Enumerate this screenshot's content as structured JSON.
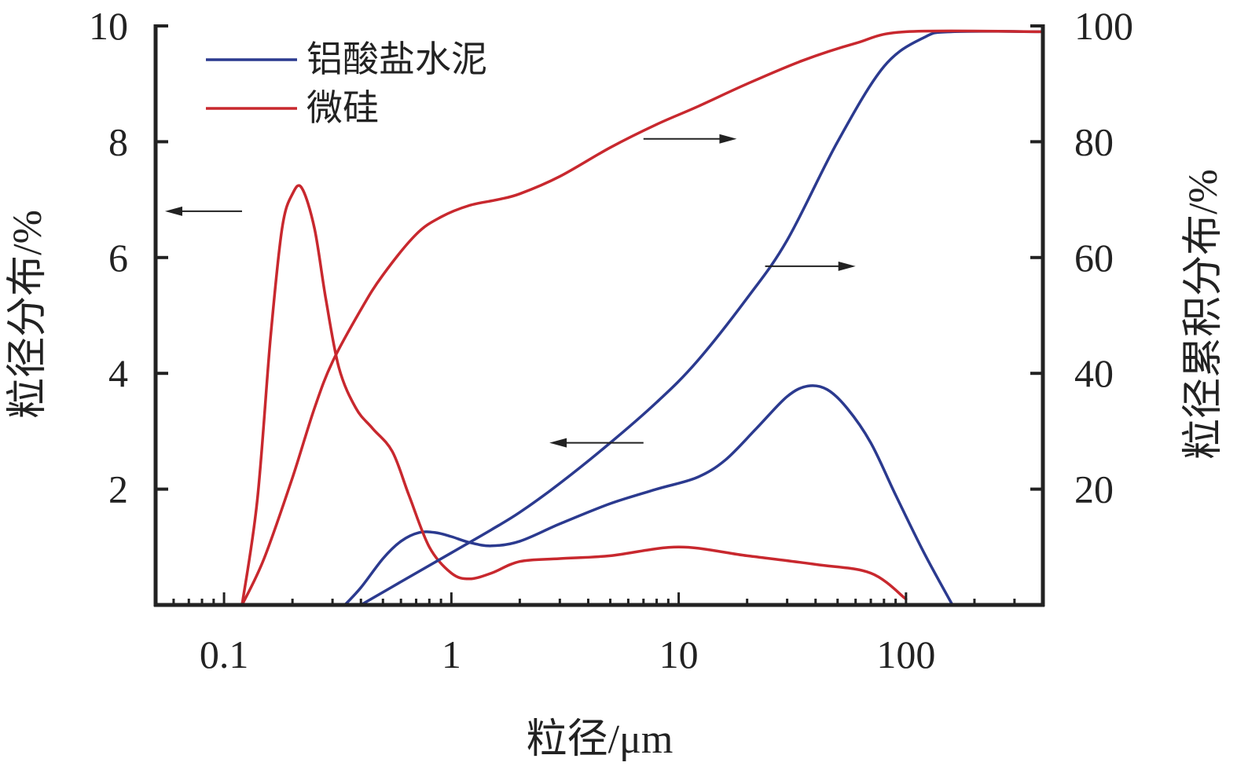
{
  "chart_data": {
    "type": "line",
    "x_scale": "log",
    "xlim": [
      0.05,
      400
    ],
    "y_left_lim": [
      0,
      10
    ],
    "y_right_lim": [
      0,
      100
    ],
    "xlabel": "粒径/μm",
    "ylabel_left": "粒径分布/%",
    "ylabel_right": "粒径累积分布/%",
    "x_ticks": [
      {
        "value": 0.1,
        "label": "0.1"
      },
      {
        "value": 1,
        "label": "1"
      },
      {
        "value": 10,
        "label": "10"
      },
      {
        "value": 100,
        "label": "100"
      }
    ],
    "y_left_ticks": [
      {
        "value": 2,
        "label": "2"
      },
      {
        "value": 4,
        "label": "4"
      },
      {
        "value": 6,
        "label": "6"
      },
      {
        "value": 8,
        "label": "8"
      },
      {
        "value": 10,
        "label": "10"
      }
    ],
    "y_right_ticks": [
      {
        "value": 20,
        "label": "20"
      },
      {
        "value": 40,
        "label": "40"
      },
      {
        "value": 60,
        "label": "60"
      },
      {
        "value": 80,
        "label": "80"
      },
      {
        "value": 100,
        "label": "100"
      }
    ],
    "grid": false,
    "legend_position": "top-left",
    "series": [
      {
        "name": "铝酸盐水泥",
        "kind": "distribution",
        "axis": "left",
        "color": "#2b3a8f",
        "x": [
          0.34,
          0.4,
          0.5,
          0.6,
          0.72,
          0.85,
          1.0,
          1.2,
          1.5,
          2.0,
          3.0,
          5.0,
          8.0,
          12,
          16,
          22,
          30,
          37,
          45,
          55,
          70,
          90,
          120,
          160
        ],
        "y": [
          0,
          0.3,
          0.8,
          1.1,
          1.25,
          1.25,
          1.18,
          1.08,
          1.02,
          1.1,
          1.4,
          1.75,
          2.0,
          2.2,
          2.5,
          3.05,
          3.6,
          3.78,
          3.72,
          3.4,
          2.8,
          1.9,
          0.9,
          0
        ]
      },
      {
        "name": "微硅",
        "kind": "distribution",
        "axis": "left",
        "color": "#c8282e",
        "x": [
          0.12,
          0.14,
          0.16,
          0.18,
          0.2,
          0.22,
          0.25,
          0.28,
          0.32,
          0.38,
          0.45,
          0.55,
          0.65,
          0.8,
          1.0,
          1.2,
          1.5,
          2.0,
          3.0,
          5.0,
          10,
          20,
          40,
          70,
          100
        ],
        "y": [
          0,
          1.8,
          4.6,
          6.5,
          7.1,
          7.2,
          6.5,
          5.3,
          4.1,
          3.4,
          3.05,
          2.65,
          1.9,
          1.0,
          0.55,
          0.45,
          0.55,
          0.75,
          0.8,
          0.85,
          1.0,
          0.85,
          0.7,
          0.55,
          0.1
        ]
      },
      {
        "name": "铝酸盐水泥",
        "kind": "cumulative",
        "axis": "right",
        "color": "#2b3a8f",
        "x": [
          0.4,
          0.6,
          1.0,
          1.5,
          2.0,
          3.0,
          5.0,
          8.0,
          12,
          20,
          30,
          50,
          80,
          120,
          160,
          400
        ],
        "y": [
          0,
          4,
          9,
          13,
          16,
          21,
          28,
          35,
          42,
          53,
          63,
          80,
          93,
          98,
          99,
          99
        ]
      },
      {
        "name": "微硅",
        "kind": "cumulative",
        "axis": "right",
        "color": "#c8282e",
        "x": [
          0.12,
          0.15,
          0.2,
          0.25,
          0.3,
          0.4,
          0.5,
          0.7,
          0.9,
          1.2,
          1.6,
          2.0,
          3.0,
          5.0,
          8.0,
          12,
          20,
          35,
          60,
          100,
          400
        ],
        "y": [
          0,
          8,
          22,
          34,
          42,
          51,
          57,
          64,
          67,
          69,
          70,
          71,
          74,
          79,
          83,
          86,
          90,
          94,
          97,
          99,
          99
        ]
      }
    ]
  }
}
